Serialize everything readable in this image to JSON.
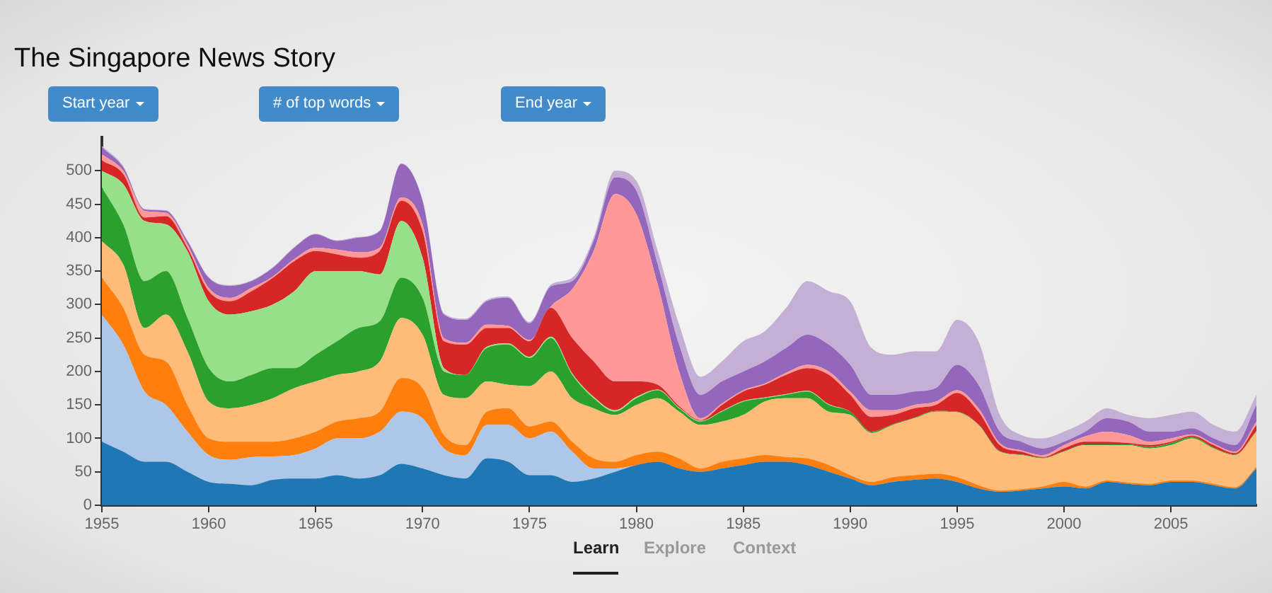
{
  "chart_data": {
    "type": "area",
    "title": "The Singapore News Story",
    "stacked": true,
    "grid": false,
    "legend": false,
    "annotations": [
      "Start year",
      "# of top words",
      "End year",
      "Learn",
      "Explore",
      "Context"
    ],
    "x": [
      1955,
      1956,
      1957,
      1958,
      1959,
      1960,
      1961,
      1962,
      1963,
      1964,
      1965,
      1966,
      1967,
      1968,
      1969,
      1970,
      1971,
      1972,
      1973,
      1974,
      1975,
      1976,
      1977,
      1978,
      1979,
      1980,
      1981,
      1982,
      1983,
      1984,
      1985,
      1986,
      1987,
      1988,
      1989,
      1990,
      1991,
      1992,
      1993,
      1994,
      1995,
      1996,
      1997,
      1998,
      1999,
      2000,
      2001,
      2002,
      2003,
      2004,
      2005,
      2006,
      2007,
      2008,
      2009
    ],
    "xlim": [
      1955,
      2009
    ],
    "xticks": [
      1955,
      1960,
      1965,
      1970,
      1975,
      1980,
      1985,
      1990,
      1995,
      2000,
      2005
    ],
    "ylim": [
      0,
      550
    ],
    "yticks": [
      0,
      50,
      100,
      150,
      200,
      250,
      300,
      350,
      400,
      450,
      500
    ],
    "series": [
      {
        "color": "#1f77b4",
        "values": [
          95,
          80,
          65,
          65,
          50,
          35,
          32,
          30,
          38,
          40,
          40,
          45,
          40,
          45,
          62,
          55,
          45,
          40,
          70,
          65,
          45,
          45,
          35,
          40,
          50,
          60,
          65,
          55,
          50,
          55,
          60,
          65,
          65,
          60,
          50,
          40,
          30,
          35,
          38,
          40,
          35,
          25,
          20,
          22,
          25,
          28,
          25,
          35,
          32,
          30,
          35,
          35,
          30,
          25,
          55
        ]
      },
      {
        "color": "#aec7e8",
        "values": [
          190,
          160,
          105,
          85,
          60,
          40,
          36,
          42,
          35,
          35,
          45,
          55,
          60,
          65,
          78,
          75,
          40,
          35,
          50,
          55,
          55,
          65,
          45,
          15,
          5,
          0,
          0,
          0,
          0,
          0,
          0,
          0,
          0,
          0,
          0,
          0,
          0,
          0,
          0,
          0,
          0,
          0,
          0,
          0,
          0,
          0,
          0,
          0,
          0,
          0,
          0,
          0,
          0,
          0,
          0
        ]
      },
      {
        "color": "#ff7f0e",
        "values": [
          55,
          55,
          55,
          65,
          40,
          25,
          27,
          23,
          22,
          25,
          25,
          25,
          30,
          30,
          50,
          45,
          20,
          15,
          20,
          25,
          18,
          15,
          15,
          15,
          10,
          15,
          15,
          15,
          5,
          10,
          10,
          10,
          7,
          10,
          10,
          5,
          5,
          7,
          7,
          7,
          7,
          5,
          2,
          2,
          3,
          7,
          3,
          2,
          2,
          2,
          2,
          2,
          2,
          2,
          2
        ]
      },
      {
        "color": "#ffbb78",
        "values": [
          55,
          65,
          40,
          70,
          80,
          55,
          50,
          55,
          65,
          75,
          75,
          70,
          70,
          75,
          90,
          80,
          60,
          70,
          45,
          35,
          60,
          75,
          65,
          75,
          70,
          75,
          80,
          70,
          65,
          60,
          65,
          80,
          88,
          90,
          80,
          90,
          73,
          78,
          85,
          93,
          97,
          90,
          58,
          51,
          42,
          45,
          62,
          53,
          56,
          53,
          53,
          63,
          53,
          48,
          53
        ]
      },
      {
        "color": "#2ca02c",
        "values": [
          80,
          60,
          70,
          65,
          50,
          50,
          40,
          45,
          45,
          30,
          40,
          50,
          65,
          60,
          60,
          55,
          35,
          35,
          50,
          60,
          42,
          50,
          35,
          15,
          5,
          10,
          12,
          5,
          5,
          15,
          20,
          5,
          5,
          10,
          10,
          5,
          2,
          1,
          1,
          1,
          1,
          1,
          1,
          1,
          1,
          1,
          1,
          1,
          1,
          2,
          3,
          2,
          1,
          1,
          1
        ]
      },
      {
        "color": "#98df8a",
        "values": [
          25,
          60,
          90,
          70,
          100,
          100,
          100,
          95,
          95,
          115,
          125,
          105,
          85,
          70,
          85,
          60,
          5,
          0,
          2,
          2,
          2,
          2,
          2,
          2,
          2,
          2,
          1,
          1,
          1,
          1,
          1,
          1,
          1,
          1,
          1,
          0,
          0,
          0,
          0,
          0,
          0,
          0,
          0,
          0,
          0,
          0,
          0,
          0,
          0,
          0,
          0,
          0,
          0,
          0,
          0
        ]
      },
      {
        "color": "#d62728",
        "values": [
          15,
          15,
          5,
          12,
          5,
          15,
          20,
          30,
          40,
          45,
          30,
          25,
          20,
          35,
          30,
          40,
          40,
          45,
          28,
          23,
          23,
          43,
          53,
          53,
          43,
          23,
          7,
          2,
          1,
          9,
          14,
          19,
          29,
          34,
          44,
          25,
          22,
          14,
          14,
          9,
          28,
          19,
          9,
          4,
          1,
          4,
          4,
          4,
          2,
          3,
          2,
          2,
          4,
          2,
          9
        ]
      },
      {
        "color": "#ff9896",
        "values": [
          10,
          5,
          10,
          5,
          5,
          5,
          5,
          5,
          2,
          3,
          5,
          7,
          8,
          5,
          5,
          10,
          5,
          3,
          5,
          3,
          2,
          2,
          73,
          165,
          280,
          250,
          150,
          52,
          3,
          2,
          2,
          2,
          3,
          5,
          5,
          5,
          10,
          7,
          5,
          5,
          4,
          5,
          3,
          2,
          3,
          5,
          8,
          15,
          12,
          5,
          5,
          2,
          2,
          2,
          5
        ]
      },
      {
        "color": "#9467bd",
        "values": [
          10,
          5,
          2,
          3,
          5,
          15,
          18,
          10,
          13,
          17,
          20,
          13,
          22,
          25,
          50,
          35,
          35,
          34,
          35,
          42,
          25,
          30,
          12,
          15,
          25,
          35,
          30,
          40,
          35,
          33,
          28,
          33,
          37,
          45,
          40,
          40,
          23,
          23,
          20,
          20,
          38,
          35,
          17,
          13,
          10,
          5,
          7,
          20,
          20,
          15,
          10,
          9,
          8,
          10,
          25
        ]
      },
      {
        "color": "#c5b0d5",
        "values": [
          2,
          2,
          1,
          1,
          1,
          1,
          1,
          1,
          1,
          1,
          1,
          1,
          1,
          1,
          1,
          1,
          2,
          2,
          2,
          2,
          2,
          3,
          5,
          5,
          10,
          15,
          20,
          30,
          27,
          30,
          45,
          45,
          60,
          80,
          80,
          95,
          70,
          60,
          60,
          55,
          67,
          65,
          25,
          10,
          15,
          15,
          15,
          15,
          10,
          20,
          25,
          25,
          20,
          20,
          15
        ]
      }
    ]
  }
}
